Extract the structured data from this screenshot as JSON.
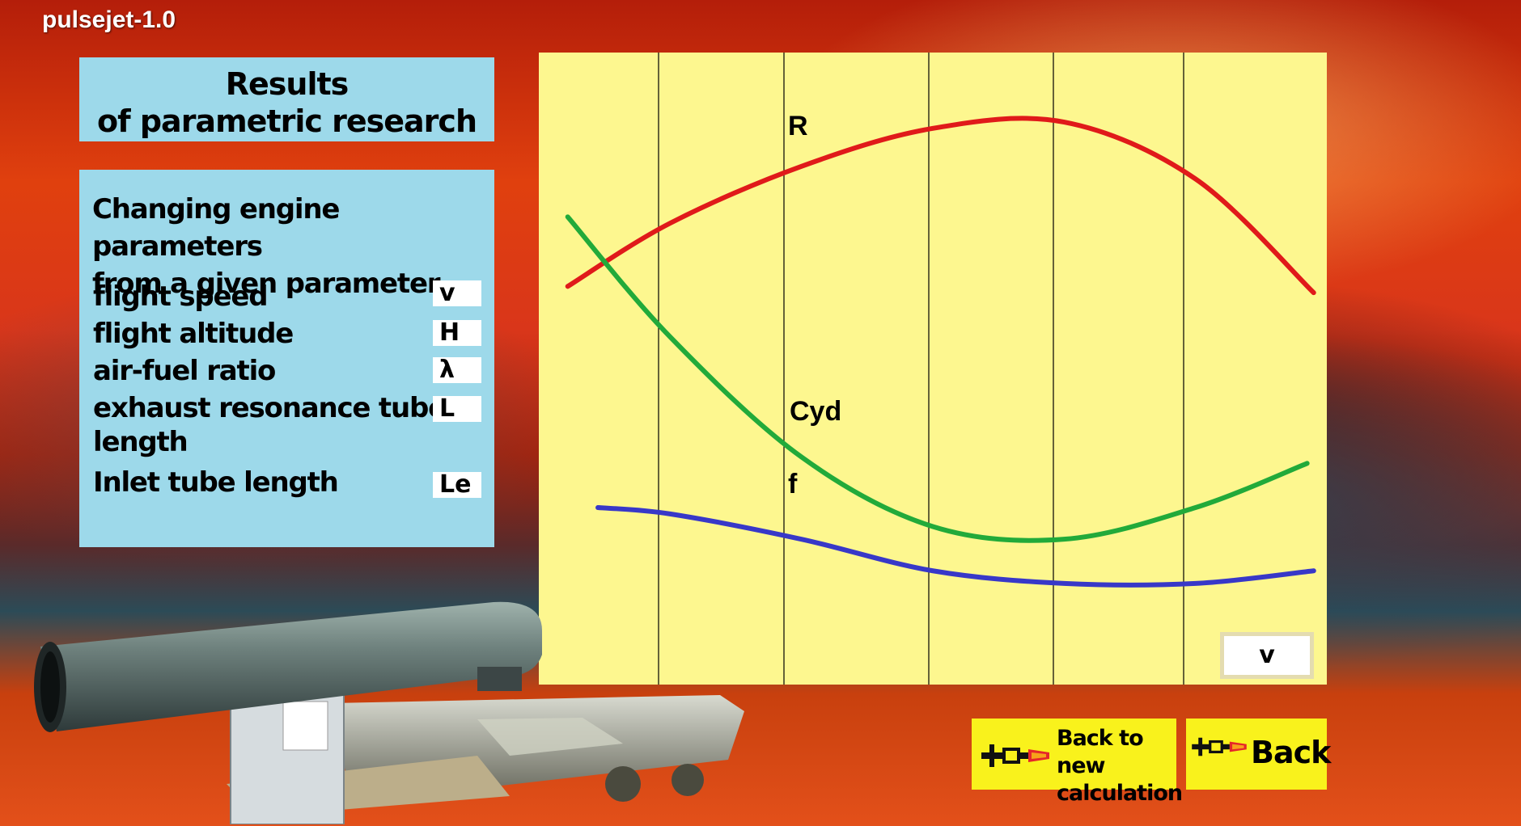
{
  "app": {
    "title": "pulsejet-1.0"
  },
  "results_panel": {
    "title_line1": "Results",
    "title_line2": "of parametric research"
  },
  "info_panel": {
    "intro_line1": "Changing engine parameters",
    "intro_line2": "from a given parameter",
    "params": [
      {
        "label": "flight speed",
        "button": "v"
      },
      {
        "label": "flight altitude",
        "button": "H"
      },
      {
        "label": "air-fuel ratio",
        "button": "λ"
      },
      {
        "label": "exhaust resonance tube",
        "label_line2": "length",
        "button": "L"
      },
      {
        "label": "Inlet tube length",
        "button": "Le"
      }
    ]
  },
  "chart": {
    "axis_button": "v",
    "series_labels": {
      "r": "R",
      "cyd": "Cyd",
      "f": "f"
    },
    "colors": {
      "r": "#e01a1a",
      "cyd": "#22aa3a",
      "f": "#3838c8",
      "background": "#fdf78f",
      "grid": "#000000"
    }
  },
  "chart_data": {
    "type": "line",
    "title": "",
    "xlabel": "v",
    "ylabel": "",
    "grid": true,
    "grid_columns": 6,
    "x": [
      0,
      1,
      2,
      3,
      4,
      5,
      6
    ],
    "ylim": [
      0,
      10
    ],
    "series": [
      {
        "name": "R",
        "color": "#e01a1a",
        "x": [
          0.22,
          1,
          2,
          3,
          4,
          5,
          5.9
        ],
        "values": [
          6.3,
          7.3,
          8.2,
          8.8,
          8.9,
          8.0,
          6.2
        ]
      },
      {
        "name": "Cyd",
        "color": "#22aa3a",
        "x": [
          0.22,
          1,
          2,
          3,
          4,
          5,
          5.85
        ],
        "values": [
          7.4,
          5.5,
          3.6,
          2.5,
          2.3,
          2.8,
          3.5
        ]
      },
      {
        "name": "f",
        "color": "#3838c8",
        "x": [
          0.45,
          1,
          2,
          3,
          4,
          5,
          5.9
        ],
        "values": [
          2.8,
          2.7,
          2.3,
          1.8,
          1.6,
          1.6,
          1.8
        ]
      }
    ]
  },
  "nav": {
    "new_calc_line1": "Back to new",
    "new_calc_line2": "calculation",
    "back": "Back"
  }
}
